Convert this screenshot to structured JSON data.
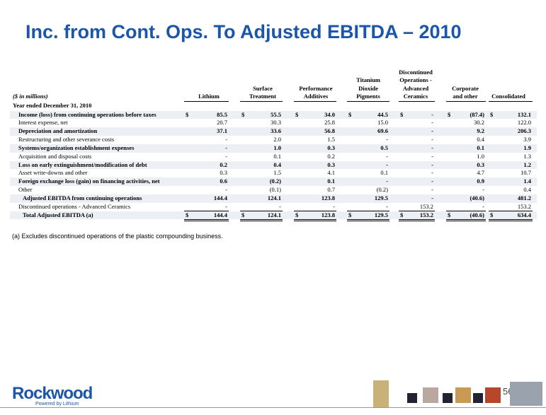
{
  "title": "Inc. from Cont. Ops. To Adjusted EBITDA – 2010",
  "table": {
    "units": "($ in millions)",
    "columns": [
      [
        "Lithium"
      ],
      [
        "Surface",
        "Treatment"
      ],
      [
        "Performance",
        "Additives"
      ],
      [
        "Titanium",
        "Dioxide",
        "Pigments"
      ],
      [
        "Discontinued",
        "Operations -",
        "Advanced",
        "Ceramics"
      ],
      [
        "Corporate",
        "and other"
      ],
      [
        "Consolidated"
      ]
    ],
    "currency_symbol": "$",
    "section": "Year ended December 31, 2010",
    "rows": [
      {
        "label": "Income (loss) from continuing operations before taxes",
        "values": [
          "85.5",
          "55.5",
          "34.0",
          "44.5",
          "-",
          "(87.4)",
          "132.1"
        ]
      },
      {
        "label": "Interest expense, net",
        "values": [
          "20.7",
          "30.3",
          "25.8",
          "15.0",
          "-",
          "30.2",
          "122.0"
        ]
      },
      {
        "label": "Depreciation and amortization",
        "values": [
          "37.1",
          "33.6",
          "56.8",
          "69.6",
          "-",
          "9.2",
          "206.3"
        ]
      },
      {
        "label": "Restructuring and other severance costs",
        "values": [
          "-",
          "2.0",
          "1.5",
          "-",
          "-",
          "0.4",
          "3.9"
        ]
      },
      {
        "label": "Systems/organization establishment expenses",
        "values": [
          "-",
          "1.0",
          "0.3",
          "0.5",
          "-",
          "0.1",
          "1.9"
        ]
      },
      {
        "label": "Acquisition and disposal costs",
        "values": [
          "-",
          "0.1",
          "0.2",
          "-",
          "-",
          "1.0",
          "1.3"
        ]
      },
      {
        "label": "Loss on early extinguishment/modification of debt",
        "values": [
          "0.2",
          "0.4",
          "0.3",
          "-",
          "-",
          "0.3",
          "1.2"
        ]
      },
      {
        "label": "Asset write-downs and other",
        "values": [
          "0.3",
          "1.5",
          "4.1",
          "0.1",
          "-",
          "4.7",
          "10.7"
        ]
      },
      {
        "label": "Foreign exchange loss (gain) on financing activities, net",
        "values": [
          "0.6",
          "(0.2)",
          "0.1",
          "-",
          "-",
          "0.9",
          "1.4"
        ]
      },
      {
        "label": "Other",
        "values": [
          "-",
          "(0.1)",
          "0.7",
          "(0.2)",
          "-",
          "-",
          "0.4"
        ]
      },
      {
        "label": "Adjusted EBITDA from continuing operations",
        "values": [
          "144.4",
          "124.1",
          "123.8",
          "129.5",
          "-",
          "(40.6)",
          "481.2"
        ]
      },
      {
        "label": "Discontinued operations - Advanced Ceramics",
        "values": [
          "-",
          "-",
          "-",
          "-",
          "153.2",
          "-",
          "153.2"
        ]
      },
      {
        "label": "Total Adjusted EBITDA (a)",
        "values": [
          "144.4",
          "124.1",
          "123.8",
          "129.5",
          "153.2",
          "(40.6)",
          "634.4"
        ]
      }
    ]
  },
  "footnote": "(a) Excludes discontinued operations of the plastic compounding business.",
  "logo": {
    "name": "Rockwood",
    "tagline": "Powered by Lithium"
  },
  "page_number": "56"
}
